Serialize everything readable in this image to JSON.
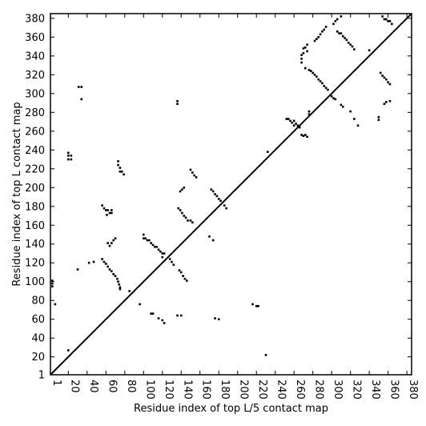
{
  "chart_data": {
    "type": "scatter",
    "title": "",
    "xlabel": "Residue index of top L/5 contact map",
    "ylabel": "Residue index of top L contact map",
    "xlim": [
      1,
      385
    ],
    "ylim": [
      1,
      385
    ],
    "grid": false,
    "legend": "none",
    "xticks": [
      1,
      20,
      40,
      60,
      80,
      100,
      120,
      140,
      160,
      180,
      200,
      220,
      240,
      260,
      280,
      300,
      320,
      340,
      360,
      380
    ],
    "yticks": [
      1,
      20,
      40,
      60,
      80,
      100,
      120,
      140,
      160,
      180,
      200,
      220,
      240,
      260,
      280,
      300,
      320,
      340,
      360,
      380
    ],
    "diagonal": {
      "from": [
        1,
        1
      ],
      "to": [
        385,
        385
      ],
      "color": "#000000"
    },
    "point_color": "#000000",
    "series": [
      {
        "region": "upper-left (top L)",
        "points": [
          [
            3,
            95
          ],
          [
            3,
            98
          ],
          [
            3,
            101
          ],
          [
            6,
            76
          ],
          [
            31,
            307
          ],
          [
            34,
            307
          ],
          [
            34,
            294
          ],
          [
            20,
            237
          ],
          [
            20,
            234
          ],
          [
            20,
            230
          ],
          [
            23,
            234
          ],
          [
            23,
            230
          ],
          [
            56,
            181
          ],
          [
            58,
            178
          ],
          [
            60,
            176
          ],
          [
            62,
            176
          ],
          [
            64,
            173
          ],
          [
            66,
            173
          ],
          [
            66,
            176
          ],
          [
            61,
            171
          ],
          [
            73,
            228
          ],
          [
            73,
            224
          ],
          [
            75,
            221
          ],
          [
            75,
            217
          ],
          [
            77,
            217
          ],
          [
            79,
            214
          ],
          [
            56,
            124
          ],
          [
            58,
            121
          ],
          [
            60,
            119
          ],
          [
            62,
            116
          ],
          [
            64,
            113
          ],
          [
            66,
            111
          ],
          [
            68,
            108
          ],
          [
            70,
            106
          ],
          [
            72,
            103
          ],
          [
            73,
            100
          ],
          [
            74,
            97
          ],
          [
            75,
            94
          ],
          [
            62,
            141
          ],
          [
            64,
            138
          ],
          [
            66,
            141
          ],
          [
            68,
            144
          ],
          [
            70,
            146
          ],
          [
            100,
            150
          ],
          [
            100,
            146
          ],
          [
            102,
            146
          ],
          [
            104,
            144
          ],
          [
            106,
            144
          ],
          [
            108,
            141
          ],
          [
            110,
            139
          ],
          [
            112,
            137
          ],
          [
            114,
            137
          ],
          [
            116,
            134
          ],
          [
            118,
            132
          ],
          [
            120,
            130
          ],
          [
            120,
            126
          ],
          [
            122,
            130
          ],
          [
            128,
            124
          ],
          [
            130,
            121
          ],
          [
            132,
            118
          ],
          [
            136,
            289
          ],
          [
            136,
            292
          ],
          [
            137,
            178
          ],
          [
            139,
            176
          ],
          [
            141,
            173
          ],
          [
            143,
            170
          ],
          [
            145,
            168
          ],
          [
            147,
            165
          ],
          [
            150,
            165
          ],
          [
            152,
            163
          ],
          [
            139,
            196
          ],
          [
            141,
            198
          ],
          [
            143,
            200
          ],
          [
            150,
            219
          ],
          [
            152,
            216
          ],
          [
            154,
            213
          ],
          [
            156,
            211
          ],
          [
            172,
            198
          ],
          [
            174,
            196
          ],
          [
            176,
            193
          ],
          [
            178,
            191
          ],
          [
            180,
            188
          ],
          [
            182,
            186
          ],
          [
            186,
            181
          ],
          [
            188,
            178
          ],
          [
            260,
            271
          ],
          [
            262,
            268
          ],
          [
            264,
            266
          ],
          [
            266,
            264
          ],
          [
            268,
            341
          ],
          [
            268,
            337
          ],
          [
            268,
            333
          ],
          [
            270,
            343
          ],
          [
            270,
            348
          ],
          [
            272,
            349
          ],
          [
            274,
            352
          ],
          [
            274,
            345
          ],
          [
            276,
            281
          ],
          [
            276,
            278
          ],
          [
            276,
            325
          ],
          [
            272,
            327
          ],
          [
            282,
            356
          ],
          [
            284,
            358
          ],
          [
            286,
            360
          ],
          [
            288,
            363
          ],
          [
            290,
            366
          ],
          [
            292,
            368
          ],
          [
            294,
            371
          ],
          [
            302,
            374
          ],
          [
            304,
            377
          ],
          [
            306,
            379
          ],
          [
            310,
            382
          ],
          [
            354,
            382
          ],
          [
            356,
            379
          ],
          [
            358,
            379
          ],
          [
            360,
            377
          ],
          [
            362,
            377
          ],
          [
            364,
            374
          ]
        ]
      },
      {
        "region": "lower-right (top L/5)",
        "points": [
          [
            20,
            27
          ],
          [
            30,
            113
          ],
          [
            42,
            120
          ],
          [
            47,
            121
          ],
          [
            75,
            92
          ],
          [
            85,
            90
          ],
          [
            96,
            76
          ],
          [
            108,
            66
          ],
          [
            110,
            66
          ],
          [
            116,
            61
          ],
          [
            120,
            59
          ],
          [
            122,
            56
          ],
          [
            136,
            64
          ],
          [
            140,
            64
          ],
          [
            138,
            112
          ],
          [
            140,
            110
          ],
          [
            142,
            106
          ],
          [
            144,
            103
          ],
          [
            146,
            101
          ],
          [
            170,
            148
          ],
          [
            174,
            144
          ],
          [
            176,
            61
          ],
          [
            180,
            60
          ],
          [
            216,
            76
          ],
          [
            220,
            74
          ],
          [
            222,
            74
          ],
          [
            230,
            22
          ],
          [
            232,
            238
          ],
          [
            252,
            273
          ],
          [
            254,
            273
          ],
          [
            256,
            271
          ],
          [
            258,
            269
          ],
          [
            260,
            266
          ],
          [
            268,
            256
          ],
          [
            270,
            255
          ],
          [
            272,
            256
          ],
          [
            274,
            254
          ],
          [
            278,
            324
          ],
          [
            280,
            322
          ],
          [
            282,
            320
          ],
          [
            284,
            318
          ],
          [
            286,
            315
          ],
          [
            288,
            313
          ],
          [
            290,
            311
          ],
          [
            292,
            308
          ],
          [
            294,
            306
          ],
          [
            296,
            304
          ],
          [
            300,
            297
          ],
          [
            302,
            295
          ],
          [
            304,
            294
          ],
          [
            306,
            366
          ],
          [
            308,
            364
          ],
          [
            310,
            364
          ],
          [
            312,
            361
          ],
          [
            314,
            359
          ],
          [
            316,
            357
          ],
          [
            318,
            354
          ],
          [
            320,
            352
          ],
          [
            322,
            350
          ],
          [
            324,
            347
          ],
          [
            310,
            288
          ],
          [
            312,
            286
          ],
          [
            320,
            281
          ],
          [
            324,
            273
          ],
          [
            328,
            266
          ],
          [
            340,
            346
          ],
          [
            350,
            272
          ],
          [
            350,
            275
          ],
          [
            352,
            322
          ],
          [
            354,
            319
          ],
          [
            356,
            317
          ],
          [
            358,
            315
          ],
          [
            360,
            312
          ],
          [
            362,
            310
          ],
          [
            356,
            289
          ],
          [
            358,
            291
          ],
          [
            362,
            292
          ]
        ]
      }
    ]
  }
}
